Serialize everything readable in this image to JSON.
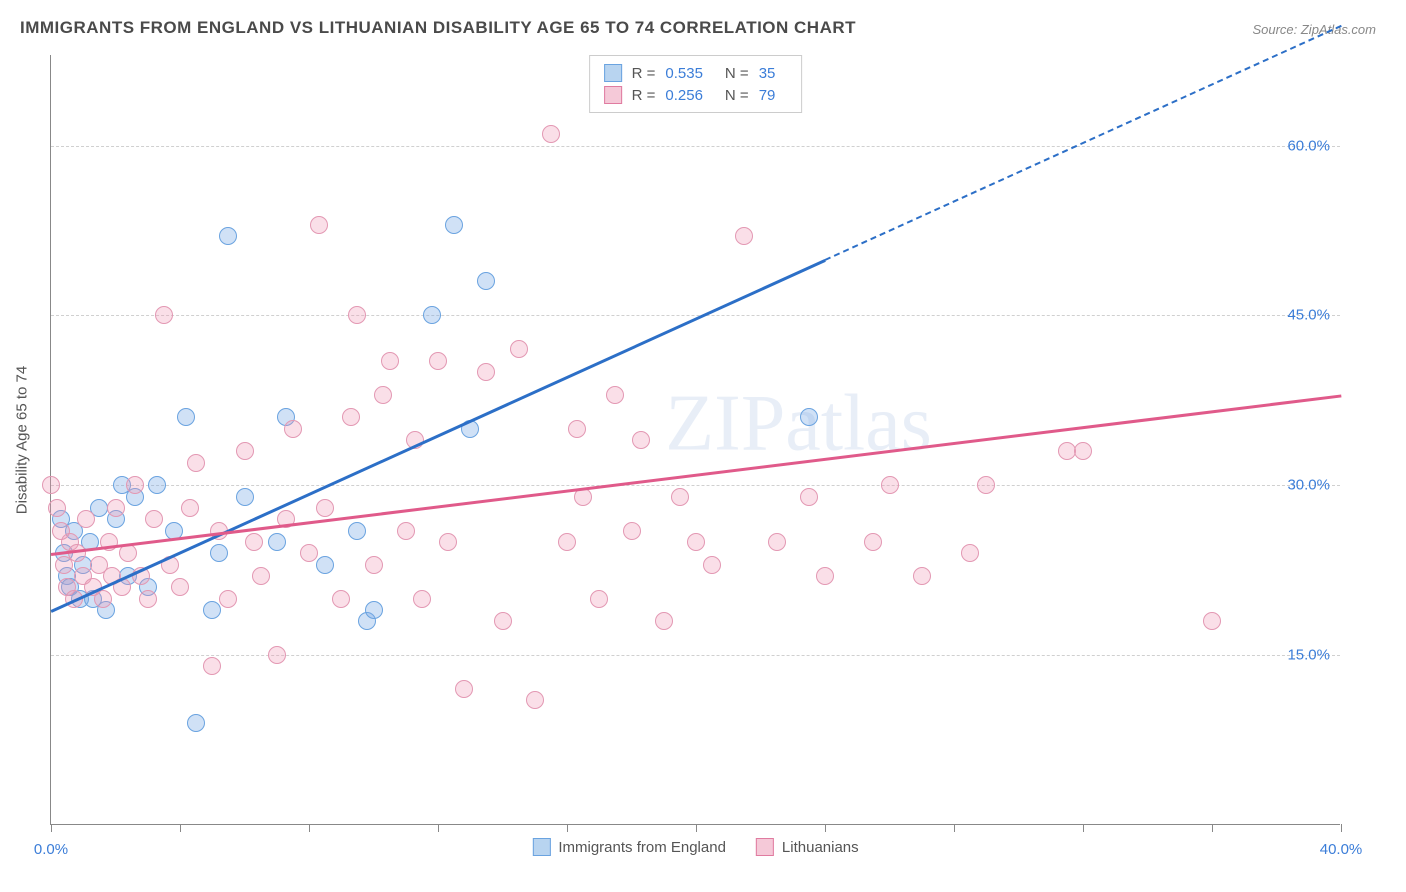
{
  "title": "IMMIGRANTS FROM ENGLAND VS LITHUANIAN DISABILITY AGE 65 TO 74 CORRELATION CHART",
  "source_label": "Source: ",
  "source_name": "ZipAtlas.com",
  "y_axis_label": "Disability Age 65 to 74",
  "watermark": "ZIPatlas",
  "chart": {
    "type": "scatter",
    "xlim": [
      0,
      40
    ],
    "ylim": [
      0,
      68
    ],
    "x_ticks": [
      0,
      4,
      8,
      12,
      16,
      20,
      24,
      28,
      32,
      36,
      40
    ],
    "x_tick_labels": {
      "0": "0.0%",
      "40": "40.0%"
    },
    "y_gridlines": [
      15,
      30,
      45,
      60
    ],
    "y_tick_labels": {
      "15": "15.0%",
      "30": "30.0%",
      "45": "45.0%",
      "60": "60.0%"
    },
    "background_color": "#ffffff",
    "grid_color": "#d0d0d0",
    "axis_color": "#888888",
    "marker_radius": 9,
    "marker_stroke_width": 1.5
  },
  "series": [
    {
      "name": "Immigrants from England",
      "fill_color": "rgba(120, 170, 230, 0.35)",
      "stroke_color": "#6aa3e0",
      "swatch_fill": "#b8d4f0",
      "swatch_stroke": "#6aa3e0",
      "trend": {
        "start": [
          0,
          19
        ],
        "end": [
          24,
          50
        ],
        "extend_to_x": 40,
        "color": "#2c6fc7"
      },
      "R_label": "R = ",
      "R_value": "0.535",
      "N_label": "N = ",
      "N_value": "35",
      "points": [
        [
          0.3,
          27
        ],
        [
          0.4,
          24
        ],
        [
          0.5,
          22
        ],
        [
          0.6,
          21
        ],
        [
          0.7,
          26
        ],
        [
          0.9,
          20
        ],
        [
          1.0,
          23
        ],
        [
          1.2,
          25
        ],
        [
          1.3,
          20
        ],
        [
          1.5,
          28
        ],
        [
          1.7,
          19
        ],
        [
          2.0,
          27
        ],
        [
          2.2,
          30
        ],
        [
          2.4,
          22
        ],
        [
          2.6,
          29
        ],
        [
          3.0,
          21
        ],
        [
          3.3,
          30
        ],
        [
          3.8,
          26
        ],
        [
          4.2,
          36
        ],
        [
          5.0,
          19
        ],
        [
          5.2,
          24
        ],
        [
          5.5,
          52
        ],
        [
          6.0,
          29
        ],
        [
          7.0,
          25
        ],
        [
          7.3,
          36
        ],
        [
          8.5,
          23
        ],
        [
          9.5,
          26
        ],
        [
          9.8,
          18
        ],
        [
          10.0,
          19
        ],
        [
          11.8,
          45
        ],
        [
          12.5,
          53
        ],
        [
          13.0,
          35
        ],
        [
          13.5,
          48
        ],
        [
          23.5,
          36
        ],
        [
          4.5,
          9
        ]
      ]
    },
    {
      "name": "Lithuanians",
      "fill_color": "rgba(240, 150, 180, 0.30)",
      "stroke_color": "#e398b3",
      "swatch_fill": "#f5c9d8",
      "swatch_stroke": "#e07ba0",
      "trend": {
        "start": [
          0,
          24
        ],
        "end": [
          40,
          38
        ],
        "color": "#e05a8a"
      },
      "R_label": "R = ",
      "R_value": "0.256",
      "N_label": "N = ",
      "N_value": "79",
      "points": [
        [
          0.2,
          28
        ],
        [
          0.3,
          26
        ],
        [
          0.4,
          23
        ],
        [
          0.5,
          21
        ],
        [
          0.6,
          25
        ],
        [
          0.7,
          20
        ],
        [
          0.8,
          24
        ],
        [
          1.0,
          22
        ],
        [
          1.1,
          27
        ],
        [
          1.3,
          21
        ],
        [
          1.5,
          23
        ],
        [
          1.6,
          20
        ],
        [
          1.8,
          25
        ],
        [
          1.9,
          22
        ],
        [
          2.0,
          28
        ],
        [
          2.2,
          21
        ],
        [
          2.4,
          24
        ],
        [
          2.6,
          30
        ],
        [
          2.8,
          22
        ],
        [
          3.0,
          20
        ],
        [
          3.2,
          27
        ],
        [
          3.5,
          45
        ],
        [
          3.7,
          23
        ],
        [
          4.0,
          21
        ],
        [
          4.3,
          28
        ],
        [
          4.5,
          32
        ],
        [
          5.0,
          14
        ],
        [
          5.2,
          26
        ],
        [
          5.5,
          20
        ],
        [
          6.0,
          33
        ],
        [
          6.3,
          25
        ],
        [
          6.5,
          22
        ],
        [
          7.0,
          15
        ],
        [
          7.3,
          27
        ],
        [
          7.5,
          35
        ],
        [
          8.0,
          24
        ],
        [
          8.3,
          53
        ],
        [
          8.5,
          28
        ],
        [
          9.0,
          20
        ],
        [
          9.3,
          36
        ],
        [
          9.5,
          45
        ],
        [
          10.0,
          23
        ],
        [
          10.3,
          38
        ],
        [
          10.5,
          41
        ],
        [
          11.0,
          26
        ],
        [
          11.3,
          34
        ],
        [
          11.5,
          20
        ],
        [
          12.0,
          41
        ],
        [
          12.3,
          25
        ],
        [
          12.8,
          12
        ],
        [
          13.5,
          40
        ],
        [
          14.0,
          18
        ],
        [
          14.5,
          42
        ],
        [
          15.0,
          11
        ],
        [
          15.5,
          61
        ],
        [
          16.0,
          25
        ],
        [
          16.3,
          35
        ],
        [
          16.5,
          29
        ],
        [
          17.0,
          20
        ],
        [
          17.5,
          38
        ],
        [
          18.0,
          26
        ],
        [
          18.3,
          34
        ],
        [
          19.0,
          18
        ],
        [
          19.5,
          29
        ],
        [
          20.0,
          25
        ],
        [
          20.5,
          23
        ],
        [
          21.5,
          52
        ],
        [
          22.5,
          25
        ],
        [
          23.5,
          29
        ],
        [
          24.0,
          22
        ],
        [
          25.5,
          25
        ],
        [
          26.0,
          30
        ],
        [
          27.0,
          22
        ],
        [
          28.5,
          24
        ],
        [
          29.0,
          30
        ],
        [
          31.5,
          33
        ],
        [
          32.0,
          33
        ],
        [
          36.0,
          18
        ],
        [
          0.0,
          30
        ]
      ]
    }
  ],
  "legend_bottom": [
    {
      "label": "Immigrants from England",
      "swatch_fill": "#b8d4f0",
      "swatch_stroke": "#6aa3e0"
    },
    {
      "label": "Lithuanians",
      "swatch_fill": "#f5c9d8",
      "swatch_stroke": "#e07ba0"
    }
  ]
}
